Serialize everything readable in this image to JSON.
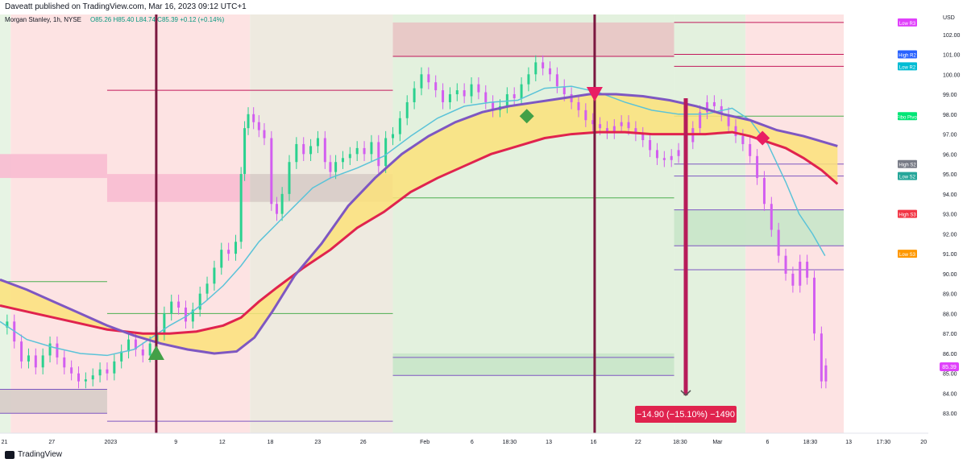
{
  "header": {
    "published": "Daveatt published on TradingView.com, Mar 16, 2023 09:12 UTC+1"
  },
  "legend": {
    "symbol": "Morgan Stanley, 1h, NYSE",
    "ohlc": "O85.26 H85.40 L84.74 C85.39 +0.12 (+0.14%)"
  },
  "footer": {
    "brand": "TradingView"
  },
  "chart_data": {
    "type": "line",
    "currency": "USD",
    "y_range": [
      82.0,
      103.0
    ],
    "y_ticks": [
      "102.00",
      "101.00",
      "100.00",
      "99.00",
      "98.00",
      "97.00",
      "96.00",
      "95.00",
      "94.00",
      "93.00",
      "92.00",
      "91.00",
      "90.00",
      "89.00",
      "88.00",
      "87.00",
      "86.00",
      "85.00",
      "84.00",
      "83.00"
    ],
    "x_ticks": [
      "21",
      "27",
      "2023",
      "9",
      "12",
      "18",
      "23",
      "26",
      "Feb",
      "6",
      "18:30",
      "13",
      "16",
      "22",
      "18:30",
      "Mar",
      "6",
      "18:30",
      "13",
      "17:30",
      "20"
    ],
    "last_price": "85.39",
    "pivot_labels": [
      {
        "text": "Low R3",
        "value": 102.6,
        "color": "#e040fb"
      },
      {
        "text": "High R2",
        "value": 101.0,
        "color": "#2962ff"
      },
      {
        "text": "Low R2",
        "value": 100.4,
        "color": "#00bcd4"
      },
      {
        "text": "Fibo Pivot",
        "value": 97.9,
        "color": "#00e676"
      },
      {
        "text": "High S2",
        "value": 95.5,
        "color": "#787b86"
      },
      {
        "text": "Low S2",
        "value": 94.9,
        "color": "#26a69a"
      },
      {
        "text": "High S3",
        "value": 93.0,
        "color": "#f23645"
      },
      {
        "text": "Low S3",
        "value": 91.0,
        "color": "#ff9800"
      }
    ],
    "measure_label": "−14.90 (−15.10%) −1490",
    "measure_from": 98.8,
    "measure_to": 83.9,
    "price_path": [
      [
        0,
        87.3
      ],
      [
        0.8,
        87.6
      ],
      [
        1.6,
        86.6
      ],
      [
        2.4,
        85.6
      ],
      [
        3.2,
        85.9
      ],
      [
        4,
        85.3
      ],
      [
        4.8,
        85.9
      ],
      [
        5.6,
        86.5
      ],
      [
        6.4,
        85.8
      ],
      [
        7.2,
        85.3
      ],
      [
        8,
        85.0
      ],
      [
        8.8,
        84.6
      ],
      [
        9.6,
        84.7
      ],
      [
        10.4,
        84.9
      ],
      [
        11.2,
        85.2
      ],
      [
        12,
        85.0
      ],
      [
        12.8,
        85.6
      ],
      [
        13.6,
        86.1
      ],
      [
        14.4,
        86.7
      ],
      [
        15.2,
        86.2
      ],
      [
        16,
        85.9
      ],
      [
        16.8,
        86.5
      ],
      [
        17.6,
        87.0
      ],
      [
        18.4,
        88.0
      ],
      [
        19.2,
        88.6
      ],
      [
        20,
        88.3
      ],
      [
        20.8,
        87.6
      ],
      [
        21.6,
        88.2
      ],
      [
        22.4,
        89.0
      ],
      [
        23.2,
        89.5
      ],
      [
        24,
        90.3
      ],
      [
        24.8,
        91.2
      ],
      [
        25.6,
        91.0
      ],
      [
        26.4,
        91.6
      ],
      [
        27,
        95.0
      ],
      [
        27.4,
        97.3
      ],
      [
        27.8,
        98.0
      ],
      [
        28.4,
        97.6
      ],
      [
        29,
        97.2
      ],
      [
        29.6,
        96.8
      ],
      [
        30.4,
        93.5
      ],
      [
        31,
        93.0
      ],
      [
        31.6,
        94.0
      ],
      [
        32.4,
        95.6
      ],
      [
        33.2,
        96.5
      ],
      [
        34,
        96.0
      ],
      [
        34.8,
        96.4
      ],
      [
        35.6,
        96.8
      ],
      [
        36.4,
        95.6
      ],
      [
        37,
        95.1
      ],
      [
        37.6,
        95.6
      ],
      [
        38.4,
        95.8
      ],
      [
        39.2,
        96.0
      ],
      [
        40,
        96.3
      ],
      [
        40.8,
        96.0
      ],
      [
        41.6,
        96.6
      ],
      [
        42.4,
        95.4
      ],
      [
        43.2,
        96.8
      ],
      [
        44,
        97.0
      ],
      [
        44.8,
        97.8
      ],
      [
        45.6,
        98.6
      ],
      [
        46.4,
        99.3
      ],
      [
        47.2,
        100.0
      ],
      [
        48,
        99.6
      ],
      [
        48.8,
        99.2
      ],
      [
        49.6,
        98.6
      ],
      [
        50.4,
        99.0
      ],
      [
        51.2,
        99.2
      ],
      [
        52,
        98.9
      ],
      [
        52.8,
        99.5
      ],
      [
        53.6,
        99.1
      ],
      [
        54.4,
        98.6
      ],
      [
        55.2,
        98.2
      ],
      [
        56,
        98.4
      ],
      [
        56.8,
        99.0
      ],
      [
        57.6,
        98.8
      ],
      [
        58.4,
        99.5
      ],
      [
        59.2,
        100.0
      ],
      [
        60,
        100.6
      ],
      [
        60.8,
        100.3
      ],
      [
        61.6,
        100.0
      ],
      [
        62.4,
        99.4
      ],
      [
        63.2,
        99.0
      ],
      [
        64,
        98.6
      ],
      [
        64.8,
        98.2
      ],
      [
        65.6,
        97.7
      ],
      [
        66.4,
        97.5
      ],
      [
        67.2,
        97.3
      ],
      [
        68,
        97.1
      ],
      [
        68.8,
        97.4
      ],
      [
        69.6,
        97.6
      ],
      [
        70.4,
        97.3
      ],
      [
        71.2,
        97.0
      ],
      [
        72,
        96.7
      ],
      [
        72.8,
        96.2
      ],
      [
        73.6,
        95.8
      ],
      [
        74.4,
        95.7
      ],
      [
        75.2,
        95.9
      ],
      [
        76,
        96.2
      ],
      [
        76.8,
        96.6
      ],
      [
        77.6,
        97.3
      ],
      [
        78.4,
        98.1
      ],
      [
        79.2,
        98.6
      ],
      [
        80,
        98.4
      ],
      [
        80.8,
        98.0
      ],
      [
        81.6,
        97.4
      ],
      [
        82.4,
        96.9
      ],
      [
        83.2,
        96.5
      ],
      [
        84,
        95.9
      ],
      [
        84.8,
        94.8
      ],
      [
        85.6,
        93.5
      ],
      [
        86.4,
        92.2
      ],
      [
        87.2,
        90.9
      ],
      [
        88,
        90.0
      ],
      [
        88.8,
        89.4
      ],
      [
        89.6,
        90.6
      ],
      [
        90.4,
        89.8
      ],
      [
        91.2,
        87.0
      ],
      [
        92,
        84.6
      ],
      [
        92.5,
        85.4
      ]
    ],
    "series": [
      {
        "name": "",
        "color": "#5bc3d8",
        "values": [
          [
            0,
            87.6
          ],
          [
            3,
            86.7
          ],
          [
            6,
            86.3
          ],
          [
            9,
            86.0
          ],
          [
            12,
            85.9
          ],
          [
            15,
            86.2
          ],
          [
            17,
            86.8
          ],
          [
            19,
            87.4
          ],
          [
            21,
            87.9
          ],
          [
            23,
            88.6
          ],
          [
            25,
            89.4
          ],
          [
            27,
            90.4
          ],
          [
            29,
            91.6
          ],
          [
            31,
            92.5
          ],
          [
            33,
            93.4
          ],
          [
            35,
            94.3
          ],
          [
            37,
            94.8
          ],
          [
            40,
            95.3
          ],
          [
            43,
            95.9
          ],
          [
            46,
            96.9
          ],
          [
            49,
            97.8
          ],
          [
            52,
            98.4
          ],
          [
            55,
            98.6
          ],
          [
            58,
            98.7
          ],
          [
            61,
            99.3
          ],
          [
            64,
            99.4
          ],
          [
            67,
            99.1
          ],
          [
            70,
            98.6
          ],
          [
            73,
            98.2
          ],
          [
            76,
            98.0
          ],
          [
            79,
            98.0
          ],
          [
            82,
            98.3
          ],
          [
            84,
            97.7
          ],
          [
            86,
            96.5
          ],
          [
            88,
            94.6
          ],
          [
            89.5,
            93.0
          ],
          [
            91,
            92.0
          ],
          [
            92.4,
            90.9
          ]
        ]
      },
      {
        "name": "",
        "color": "#e0234e",
        "values": [
          [
            0,
            88.4
          ],
          [
            4,
            88.0
          ],
          [
            8,
            87.6
          ],
          [
            12,
            87.2
          ],
          [
            16,
            87.0
          ],
          [
            19,
            87.0
          ],
          [
            22,
            87.1
          ],
          [
            25,
            87.4
          ],
          [
            27,
            87.8
          ],
          [
            29,
            88.6
          ],
          [
            31,
            89.3
          ],
          [
            34,
            90.3
          ],
          [
            37,
            91.2
          ],
          [
            40,
            92.3
          ],
          [
            43,
            93.1
          ],
          [
            46,
            94.1
          ],
          [
            49,
            94.8
          ],
          [
            52,
            95.4
          ],
          [
            55,
            96.0
          ],
          [
            58,
            96.4
          ],
          [
            61,
            96.8
          ],
          [
            64,
            97.0
          ],
          [
            67,
            97.1
          ],
          [
            70,
            97.1
          ],
          [
            73,
            97.0
          ],
          [
            76,
            97.0
          ],
          [
            79,
            97.0
          ],
          [
            82,
            97.1
          ],
          [
            84,
            96.9
          ],
          [
            86,
            96.6
          ],
          [
            88,
            96.3
          ],
          [
            90,
            95.8
          ],
          [
            92,
            95.2
          ],
          [
            93.8,
            94.5
          ]
        ]
      },
      {
        "name": "",
        "color": "#7e57c2",
        "values": [
          [
            0,
            89.7
          ],
          [
            3,
            89.2
          ],
          [
            6,
            88.6
          ],
          [
            9,
            88.0
          ],
          [
            12,
            87.4
          ],
          [
            15,
            86.9
          ],
          [
            18,
            86.5
          ],
          [
            21,
            86.2
          ],
          [
            24,
            86.0
          ],
          [
            26.5,
            86.1
          ],
          [
            28.5,
            86.8
          ],
          [
            30.5,
            88.1
          ],
          [
            33,
            89.9
          ],
          [
            36,
            91.5
          ],
          [
            39,
            93.4
          ],
          [
            42,
            94.8
          ],
          [
            45,
            96.0
          ],
          [
            48,
            96.9
          ],
          [
            51,
            97.6
          ],
          [
            54,
            98.1
          ],
          [
            57,
            98.4
          ],
          [
            60,
            98.6
          ],
          [
            63,
            98.8
          ],
          [
            66,
            99.0
          ],
          [
            69,
            99.0
          ],
          [
            72,
            98.9
          ],
          [
            75,
            98.7
          ],
          [
            78,
            98.4
          ],
          [
            81,
            98.0
          ],
          [
            84,
            97.7
          ],
          [
            87,
            97.2
          ],
          [
            90,
            96.9
          ],
          [
            93.8,
            96.4
          ]
        ]
      },
      {
        "name": "",
        "color": "#fff176",
        "values": [
          [
            0,
            89.0
          ],
          [
            3,
            89.5
          ],
          [
            6,
            88.6
          ],
          [
            9,
            87.7
          ],
          [
            12,
            87.3
          ],
          [
            15,
            86.9
          ],
          [
            18,
            86.7
          ],
          [
            21,
            86.5
          ],
          [
            24,
            86.7
          ],
          [
            26.5,
            87.3
          ],
          [
            28.5,
            88.2
          ],
          [
            30.5,
            89.2
          ],
          [
            33,
            90.6
          ],
          [
            36,
            92.0
          ],
          [
            39,
            93.4
          ],
          [
            42,
            94.4
          ],
          [
            45,
            95.3
          ],
          [
            48,
            96.0
          ],
          [
            51,
            96.8
          ],
          [
            54,
            97.3
          ],
          [
            57,
            97.6
          ],
          [
            60,
            97.8
          ],
          [
            63,
            98.0
          ],
          [
            66,
            98.0
          ],
          [
            69,
            98.0
          ],
          [
            72,
            97.8
          ],
          [
            75,
            97.6
          ],
          [
            78,
            97.4
          ],
          [
            81,
            97.5
          ],
          [
            84,
            97.3
          ],
          [
            87,
            96.8
          ],
          [
            90,
            96.2
          ],
          [
            93.8,
            95.5
          ]
        ]
      }
    ],
    "markers": [
      {
        "shape": "triangle-up",
        "color": "#43a047",
        "x": 17.5,
        "y": 86.0
      },
      {
        "shape": "diamond",
        "color": "#43a047",
        "x": 59,
        "y": 97.9
      },
      {
        "shape": "triangle-down",
        "color": "#e91e63",
        "x": 66.6,
        "y": 99.0
      },
      {
        "shape": "diamond",
        "color": "#e91e63",
        "x": 85.4,
        "y": 96.8
      }
    ],
    "levels": [
      {
        "from": 0,
        "to": 12,
        "y": 89.6,
        "color": "#4caf50"
      },
      {
        "from": 0,
        "to": 12,
        "y": 84.2,
        "color": "#7e57c2"
      },
      {
        "from": 0,
        "to": 12,
        "y": 83.0,
        "color": "#7e57c2"
      },
      {
        "from": 12,
        "to": 44,
        "y": 88.0,
        "color": "#4caf50"
      },
      {
        "from": 12,
        "to": 44,
        "y": 82.6,
        "color": "#7e57c2"
      },
      {
        "from": 12,
        "to": 44,
        "y": 99.2,
        "color": "#c2185b"
      },
      {
        "from": 44,
        "to": 75.5,
        "y": 93.8,
        "color": "#4caf50"
      },
      {
        "from": 44,
        "to": 75.5,
        "y": 85.8,
        "color": "#7e57c2"
      },
      {
        "from": 44,
        "to": 75.5,
        "y": 84.9,
        "color": "#7e57c2"
      },
      {
        "from": 44,
        "to": 75.5,
        "y": 100.9,
        "color": "#c2185b"
      },
      {
        "from": 75.5,
        "to": 94.5,
        "y": 97.9,
        "color": "#4caf50"
      },
      {
        "from": 75.5,
        "to": 94.5,
        "y": 95.5,
        "color": "#7e57c2"
      },
      {
        "from": 75.5,
        "to": 94.5,
        "y": 94.9,
        "color": "#7e57c2"
      },
      {
        "from": 75.5,
        "to": 94.5,
        "y": 93.2,
        "color": "#7e57c2"
      },
      {
        "from": 75.5,
        "to": 94.5,
        "y": 91.4,
        "color": "#7e57c2"
      },
      {
        "from": 75.5,
        "to": 94.5,
        "y": 90.2,
        "color": "#7e57c2"
      },
      {
        "from": 75.5,
        "to": 94.5,
        "y": 101.0,
        "color": "#c2185b"
      },
      {
        "from": 75.5,
        "to": 94.5,
        "y": 100.4,
        "color": "#c2185b"
      },
      {
        "from": 75.5,
        "to": 94.5,
        "y": 102.6,
        "color": "#c2185b"
      }
    ],
    "zones": [
      {
        "from": 0,
        "to": 12,
        "y1": 96.0,
        "y2": 94.8,
        "color": "#f8bbd0"
      },
      {
        "from": 0,
        "to": 12,
        "y1": 84.2,
        "y2": 83.0,
        "color": "#d7ccc8"
      },
      {
        "from": 12,
        "to": 28,
        "y1": 95.0,
        "y2": 93.6,
        "color": "#f8bbd0"
      },
      {
        "from": 28,
        "to": 44,
        "y1": 95.0,
        "y2": 93.6,
        "color": "#d7ccc8"
      },
      {
        "from": 44,
        "to": 75.5,
        "y1": 102.6,
        "y2": 100.9,
        "color": "#e8c4c4"
      },
      {
        "from": 44,
        "to": 75.5,
        "y1": 86.0,
        "y2": 84.9,
        "color": "#c8e6c9"
      },
      {
        "from": 75.5,
        "to": 94.5,
        "y1": 93.2,
        "y2": 91.4,
        "color": "#c8e6c9"
      }
    ],
    "background_bands": [
      {
        "from": 0,
        "to": 1.2,
        "color": "#e7f4e4"
      },
      {
        "from": 1.2,
        "to": 28,
        "color": "#fde3e3"
      },
      {
        "from": 28,
        "to": 44,
        "color": "#eeeae0"
      },
      {
        "from": 44,
        "to": 75.5,
        "color": "#e3f1de"
      },
      {
        "from": 75.5,
        "to": 83.5,
        "color": "#e3f1de"
      },
      {
        "from": 83.5,
        "to": 94.5,
        "color": "#fde3e3"
      }
    ],
    "vertical_lines": [
      17.5,
      66.6
    ],
    "x_range": [
      0,
      100
    ]
  }
}
